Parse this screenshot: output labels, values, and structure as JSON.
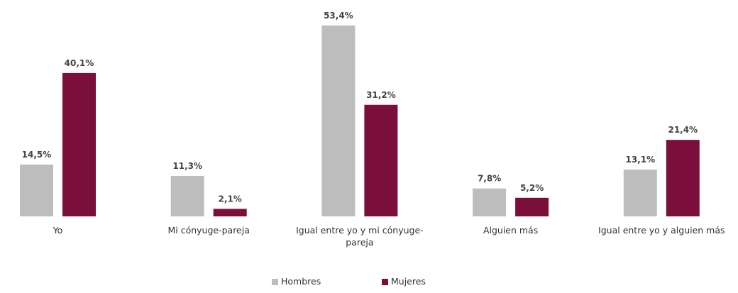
{
  "chart_data": {
    "type": "bar",
    "categories": [
      "Yo",
      "Mi cónyuge-pareja",
      "Igual entre yo y mi cónyuge-pareja",
      "Alguien más",
      "Igual entre yo y alguien más"
    ],
    "series": [
      {
        "name": "Hombres",
        "color": "#bdbdbd",
        "values": [
          14.5,
          11.3,
          53.4,
          7.8,
          13.1
        ],
        "value_labels": [
          "14,5%",
          "11,3%",
          "53,4%",
          "7,8%",
          "13,1%"
        ]
      },
      {
        "name": "Mujeres",
        "color": "#7a0f3c",
        "values": [
          40.1,
          2.1,
          31.2,
          5.2,
          21.4
        ],
        "value_labels": [
          "40,1%",
          "2,1%",
          "31,2%",
          "5,2%",
          "21,4%"
        ]
      }
    ]
  }
}
